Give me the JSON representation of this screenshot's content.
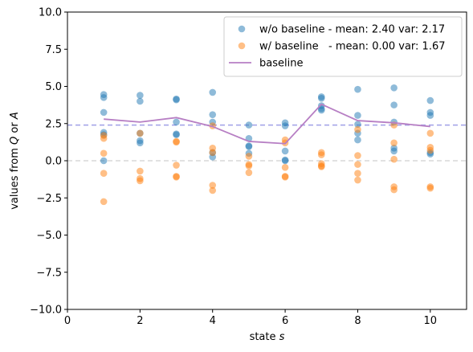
{
  "chart_data": {
    "type": "scatter",
    "title": "",
    "xlabel": "state s",
    "ylabel": "values from Q or A",
    "xlabel_parts": [
      {
        "text": "state ",
        "italic": false
      },
      {
        "text": "s",
        "italic": true
      }
    ],
    "ylabel_parts": [
      {
        "text": "values from ",
        "italic": false
      },
      {
        "text": "Q",
        "italic": true
      },
      {
        "text": " or ",
        "italic": false
      },
      {
        "text": "A",
        "italic": true
      }
    ],
    "xlim": [
      0,
      11
    ],
    "ylim": [
      -10,
      10
    ],
    "xticks": [
      0,
      2,
      4,
      6,
      8,
      10
    ],
    "xtick_labels": [
      "0",
      "2",
      "4",
      "6",
      "8",
      "10"
    ],
    "yticks": [
      -10,
      -7.5,
      -5,
      -2.5,
      0,
      2.5,
      5,
      7.5,
      10
    ],
    "ytick_labels": [
      "−10.0",
      "−7.5",
      "−5.0",
      "−2.5",
      "0.0",
      "2.5",
      "5.0",
      "7.5",
      "10.0"
    ],
    "grid": false,
    "legend_position": "top-right",
    "reference_lines": [
      {
        "y": 2.4,
        "color": "#a0a0e6",
        "style": "dashed"
      },
      {
        "y": 0.0,
        "color": "#d9d9d9",
        "style": "dashed"
      }
    ],
    "series": [
      {
        "name": "w/o baseline - mean: 2.40 var: 2.17",
        "kind": "scatter",
        "color": "#1f77b4",
        "points": [
          [
            1,
            4.45
          ],
          [
            1,
            4.25
          ],
          [
            1,
            3.25
          ],
          [
            1,
            1.9
          ],
          [
            1,
            1.75
          ],
          [
            1,
            0.0
          ],
          [
            2,
            4.4
          ],
          [
            2,
            4.0
          ],
          [
            2,
            1.85
          ],
          [
            2,
            1.35
          ],
          [
            2,
            1.2
          ],
          [
            3,
            4.15
          ],
          [
            3,
            4.1
          ],
          [
            3,
            2.6
          ],
          [
            3,
            1.8
          ],
          [
            3,
            1.75
          ],
          [
            4,
            4.6
          ],
          [
            4,
            3.1
          ],
          [
            4,
            2.6
          ],
          [
            4,
            0.55
          ],
          [
            4,
            0.25
          ],
          [
            5,
            2.4
          ],
          [
            5,
            1.5
          ],
          [
            5,
            1.0
          ],
          [
            5,
            0.95
          ],
          [
            5,
            0.5
          ],
          [
            6,
            2.55
          ],
          [
            6,
            2.35
          ],
          [
            6,
            0.65
          ],
          [
            6,
            0.05
          ],
          [
            6,
            0.0
          ],
          [
            7,
            4.3
          ],
          [
            7,
            4.2
          ],
          [
            7,
            3.7
          ],
          [
            7,
            3.5
          ],
          [
            7,
            3.4
          ],
          [
            8,
            4.8
          ],
          [
            8,
            3.05
          ],
          [
            8,
            2.45
          ],
          [
            8,
            1.85
          ],
          [
            8,
            1.4
          ],
          [
            9,
            4.9
          ],
          [
            9,
            3.75
          ],
          [
            9,
            2.6
          ],
          [
            9,
            0.85
          ],
          [
            9,
            0.65
          ],
          [
            10,
            4.05
          ],
          [
            10,
            3.25
          ],
          [
            10,
            3.05
          ],
          [
            10,
            0.55
          ],
          [
            10,
            0.45
          ]
        ]
      },
      {
        "name": "w/ baseline   - mean: 0.00 var: 1.67",
        "kind": "scatter",
        "color": "#ff7f0e",
        "points": [
          [
            1,
            1.7
          ],
          [
            1,
            1.5
          ],
          [
            1,
            0.5
          ],
          [
            1,
            -0.85
          ],
          [
            1,
            -2.75
          ],
          [
            2,
            1.85
          ],
          [
            2,
            -0.7
          ],
          [
            2,
            -1.2
          ],
          [
            2,
            -1.35
          ],
          [
            3,
            1.3
          ],
          [
            3,
            1.25
          ],
          [
            3,
            -0.3
          ],
          [
            3,
            -1.05
          ],
          [
            3,
            -1.1
          ],
          [
            4,
            2.35
          ],
          [
            4,
            0.85
          ],
          [
            4,
            0.55
          ],
          [
            4,
            -1.65
          ],
          [
            4,
            -2.0
          ],
          [
            5,
            0.3
          ],
          [
            5,
            -0.25
          ],
          [
            5,
            -0.35
          ],
          [
            5,
            -0.8
          ],
          [
            6,
            1.4
          ],
          [
            6,
            1.2
          ],
          [
            6,
            -0.45
          ],
          [
            6,
            -1.05
          ],
          [
            6,
            -1.1
          ],
          [
            7,
            0.55
          ],
          [
            7,
            0.4
          ],
          [
            7,
            -0.2
          ],
          [
            7,
            -0.35
          ],
          [
            7,
            -0.4
          ],
          [
            8,
            2.1
          ],
          [
            8,
            0.35
          ],
          [
            8,
            -0.25
          ],
          [
            8,
            -0.85
          ],
          [
            8,
            -1.3
          ],
          [
            9,
            2.4
          ],
          [
            9,
            1.2
          ],
          [
            9,
            0.1
          ],
          [
            9,
            -1.75
          ],
          [
            9,
            -1.95
          ],
          [
            10,
            1.85
          ],
          [
            10,
            0.9
          ],
          [
            10,
            0.7
          ],
          [
            10,
            -1.75
          ],
          [
            10,
            -1.85
          ]
        ]
      },
      {
        "name": "baseline",
        "kind": "line",
        "color": "#b77fc4",
        "x": [
          1,
          2,
          3,
          4,
          5,
          6,
          7,
          8,
          9,
          10
        ],
        "values": [
          2.8,
          2.6,
          2.9,
          2.3,
          1.3,
          1.15,
          3.8,
          2.7,
          2.55,
          2.3
        ]
      }
    ]
  }
}
